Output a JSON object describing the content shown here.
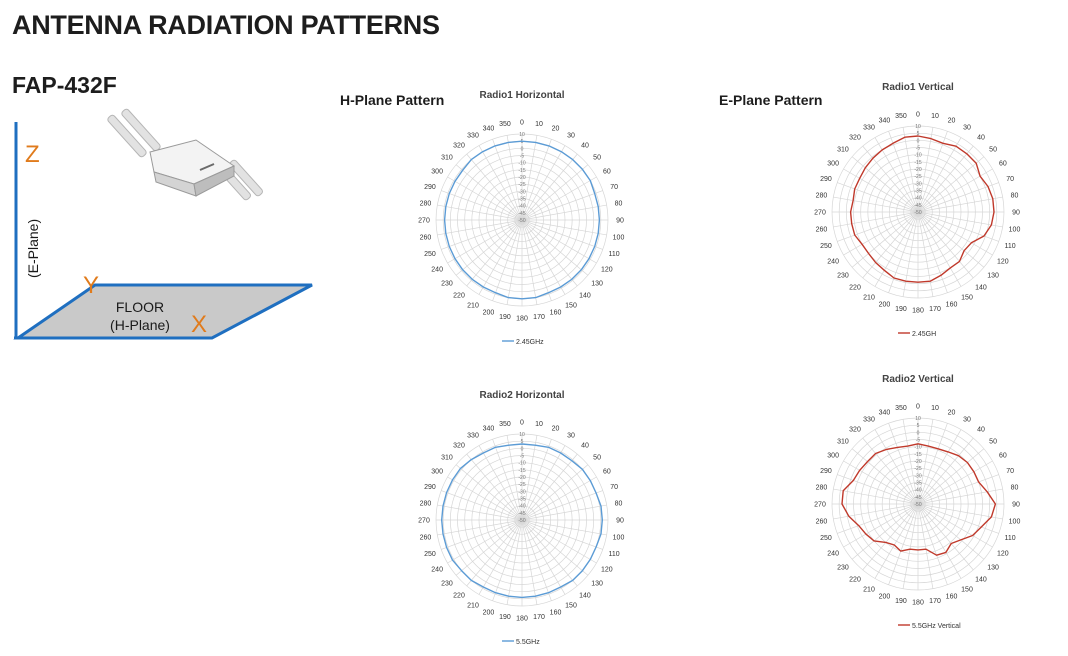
{
  "page": {
    "title": "ANTENNA RADIATION PATTERNS",
    "model": "FAP-432F",
    "h_plane_label": "H-Plane Pattern",
    "e_plane_label": "E-Plane Pattern"
  },
  "diagram": {
    "z_label": "Z",
    "y_label": "Y",
    "x_label": "X",
    "e_plane_label": "(E-Plane)",
    "floor_label": "FLOOR",
    "h_plane_label": "(H-Plane)",
    "colors": {
      "axis": "#1f6fc0",
      "axis_letters": "#e07b1c",
      "floor": "#c9c9c9"
    }
  },
  "chart_data": [
    {
      "type": "polar",
      "title": "Radio1 Horizontal",
      "angles": [
        0,
        10,
        20,
        30,
        40,
        50,
        60,
        70,
        80,
        90,
        100,
        110,
        120,
        130,
        140,
        150,
        160,
        170,
        180,
        190,
        200,
        210,
        220,
        230,
        240,
        250,
        260,
        270,
        280,
        290,
        300,
        310,
        320,
        330,
        340,
        350
      ],
      "radial_ticks": [
        "10",
        "5",
        "0",
        "-5",
        "-10",
        "-15",
        "-20",
        "-25",
        "-30",
        "-35",
        "-40",
        "-45",
        "-50"
      ],
      "rlim": [
        -50,
        10
      ],
      "series": [
        {
          "name": "2.45GHz",
          "color": "#5b9bd5",
          "values": [
            5,
            5,
            5,
            5,
            5,
            5,
            5,
            4,
            4,
            4,
            4,
            4,
            4,
            4,
            4,
            4,
            4,
            5,
            5,
            5,
            4,
            4,
            4,
            4,
            4,
            4,
            4,
            4,
            4,
            4,
            4,
            4,
            5,
            5,
            5,
            5
          ]
        }
      ]
    },
    {
      "type": "polar",
      "title": "Radio1 Vertical",
      "angles": [
        0,
        10,
        20,
        30,
        40,
        50,
        60,
        70,
        80,
        90,
        100,
        110,
        120,
        130,
        140,
        150,
        160,
        170,
        180,
        190,
        200,
        210,
        220,
        230,
        240,
        250,
        260,
        270,
        280,
        290,
        300,
        310,
        320,
        330,
        340,
        350
      ],
      "radial_ticks": [
        "10",
        "5",
        "0",
        "-5",
        "-10",
        "-15",
        "-20",
        "-25",
        "-30",
        "-35",
        "-40",
        "-45",
        "-50"
      ],
      "rlim": [
        -50,
        10
      ],
      "series": [
        {
          "name": "2.45GH",
          "color": "#c0392b",
          "values": [
            3,
            2,
            1,
            3,
            3,
            3,
            0,
            2,
            3,
            3,
            2,
            -1,
            -7,
            -8,
            -5,
            -5,
            -3,
            -1,
            -1,
            -1,
            -1,
            -3,
            -4,
            -5,
            -5,
            -3,
            -3,
            -3,
            -4,
            -3,
            -3,
            -2,
            -1,
            0,
            1,
            3
          ]
        }
      ]
    },
    {
      "type": "polar",
      "title": "Radio2 Horizontal",
      "angles": [
        0,
        10,
        20,
        30,
        40,
        50,
        60,
        70,
        80,
        90,
        100,
        110,
        120,
        130,
        140,
        150,
        160,
        170,
        180,
        190,
        200,
        210,
        220,
        230,
        240,
        250,
        260,
        270,
        280,
        290,
        300,
        310,
        320,
        330,
        340,
        350
      ],
      "radial_ticks": [
        "10",
        "5",
        "0",
        "-5",
        "-10",
        "-15",
        "-20",
        "-25",
        "-30",
        "-35",
        "-40",
        "-45",
        "-50"
      ],
      "rlim": [
        -50,
        10
      ],
      "series": [
        {
          "name": "5.5GHz",
          "color": "#5b9bd5",
          "values": [
            3,
            3,
            4,
            4,
            4,
            5,
            5,
            5,
            6,
            6,
            6,
            5,
            5,
            5,
            5,
            4,
            4,
            4,
            4,
            4,
            4,
            4,
            5,
            5,
            6,
            6,
            6,
            6,
            6,
            6,
            6,
            6,
            5,
            4,
            4,
            3
          ]
        }
      ]
    },
    {
      "type": "polar",
      "title": "Radio2 Vertical",
      "angles": [
        0,
        10,
        20,
        30,
        40,
        50,
        60,
        70,
        80,
        90,
        100,
        110,
        120,
        130,
        140,
        150,
        160,
        170,
        180,
        190,
        200,
        210,
        220,
        230,
        240,
        250,
        260,
        270,
        280,
        290,
        300,
        310,
        320,
        330,
        340,
        350
      ],
      "radial_ticks": [
        "10",
        "5",
        "0",
        "-5",
        "-10",
        "-15",
        "-20",
        "-25",
        "-30",
        "-35",
        "-40",
        "-45",
        "-50"
      ],
      "rlim": [
        -50,
        10
      ],
      "series": [
        {
          "name": "5.5GHz Vertical",
          "color": "#c0392b",
          "values": [
            -8,
            -9,
            -9,
            -8,
            -6,
            -5,
            -5,
            -5,
            -1,
            4,
            2,
            -3,
            -6,
            -11,
            -14,
            -11,
            -12,
            -18,
            -18,
            -18,
            -15,
            -17,
            -15,
            -10,
            -8,
            -6,
            -1,
            3,
            3,
            -2,
            -3,
            -4,
            -4,
            -6,
            -8,
            -9
          ]
        }
      ]
    }
  ]
}
